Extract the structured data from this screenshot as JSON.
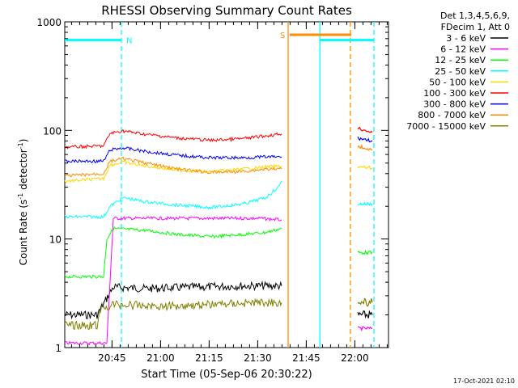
{
  "chart_data": {
    "type": "line",
    "title": "RHESSI Observing Summary Count Rates",
    "xlabel": "Start Time (05-Sep-06 20:30:22)",
    "ylabel": "Count Rate (s",
    "ylabel_sup1": "-1",
    "ylabel_mid": " detector",
    "ylabel_sup2": "-1",
    "ylabel_end": ")",
    "yscale": "log",
    "ylim": [
      1,
      1000
    ],
    "xlim_minutes": [
      0,
      100
    ],
    "x_ticks": [
      {
        "m": 14.6,
        "label": "20:45"
      },
      {
        "m": 29.6,
        "label": "21:00"
      },
      {
        "m": 44.6,
        "label": "21:15"
      },
      {
        "m": 59.6,
        "label": "21:30"
      },
      {
        "m": 74.6,
        "label": "21:45"
      },
      {
        "m": 89.6,
        "label": "22:00"
      }
    ],
    "y_ticks": [
      {
        "v": 1,
        "label": "1"
      },
      {
        "v": 10,
        "label": "10"
      },
      {
        "v": 100,
        "label": "100"
      },
      {
        "v": 1000,
        "label": "1000"
      }
    ],
    "legend_header": [
      "Det 1,3,4,5,6,9,",
      "FDecim 1, Att 0"
    ],
    "legend_position": "right",
    "series": [
      {
        "name": "3 - 6 keV",
        "color": "#000000",
        "points": [
          [
            0,
            2.0
          ],
          [
            10,
            2.0
          ],
          [
            15,
            3.6
          ],
          [
            25,
            3.5
          ],
          [
            40,
            3.6
          ],
          [
            55,
            3.7
          ],
          [
            67,
            3.7
          ]
        ],
        "points2": [
          [
            90.5,
            2.0
          ],
          [
            95,
            2.0
          ]
        ]
      },
      {
        "name": "6 - 12 keV",
        "color": "#ff00ff",
        "points": [
          [
            0,
            1.1
          ],
          [
            13,
            1.1
          ],
          [
            15,
            15.5
          ],
          [
            30,
            15.5
          ],
          [
            45,
            15.5
          ],
          [
            60,
            15.5
          ],
          [
            67,
            15.0
          ]
        ],
        "points2": [
          [
            90.5,
            1.5
          ],
          [
            95,
            1.5
          ]
        ]
      },
      {
        "name": "12 - 25 keV",
        "color": "#00ff00",
        "points": [
          [
            0,
            4.5
          ],
          [
            12,
            4.5
          ],
          [
            13,
            10
          ],
          [
            15,
            12.5
          ],
          [
            25,
            12.0
          ],
          [
            35,
            11.0
          ],
          [
            45,
            10.5
          ],
          [
            55,
            11.0
          ],
          [
            62,
            11.5
          ],
          [
            67,
            12.5
          ]
        ],
        "points2": [
          [
            90.5,
            7.5
          ],
          [
            95,
            7.5
          ]
        ]
      },
      {
        "name": "25 - 50 keV",
        "color": "#00ffff",
        "points": [
          [
            0,
            16
          ],
          [
            12,
            16
          ],
          [
            14,
            20
          ],
          [
            18,
            24
          ],
          [
            25,
            22
          ],
          [
            35,
            20.5
          ],
          [
            45,
            19.5
          ],
          [
            55,
            21
          ],
          [
            62,
            24
          ],
          [
            66,
            30
          ],
          [
            67,
            34
          ]
        ],
        "points2": [
          [
            90.5,
            21
          ],
          [
            95,
            21
          ]
        ]
      },
      {
        "name": "50 - 100 keV",
        "color": "#ffd700",
        "points": [
          [
            0,
            34
          ],
          [
            12,
            36
          ],
          [
            14,
            48
          ],
          [
            18,
            51
          ],
          [
            25,
            47
          ],
          [
            35,
            43
          ],
          [
            45,
            41.5
          ],
          [
            55,
            44
          ],
          [
            62,
            46
          ],
          [
            67,
            47
          ]
        ],
        "points2": [
          [
            90.5,
            46
          ],
          [
            95,
            45
          ]
        ]
      },
      {
        "name": "100 - 300 keV",
        "color": "#ff0000",
        "points": [
          [
            0,
            70
          ],
          [
            12,
            72
          ],
          [
            14,
            94
          ],
          [
            18,
            99
          ],
          [
            25,
            92
          ],
          [
            35,
            85
          ],
          [
            45,
            81
          ],
          [
            55,
            84
          ],
          [
            62,
            89
          ],
          [
            67,
            93
          ]
        ],
        "points2": [
          [
            90.5,
            105
          ],
          [
            95,
            96
          ]
        ]
      },
      {
        "name": "300 - 800 keV",
        "color": "#0000ff",
        "points": [
          [
            0,
            52
          ],
          [
            12,
            52
          ],
          [
            14,
            66
          ],
          [
            18,
            69
          ],
          [
            25,
            64
          ],
          [
            35,
            59
          ],
          [
            45,
            56
          ],
          [
            55,
            56
          ],
          [
            62,
            57
          ],
          [
            67,
            57
          ]
        ],
        "points2": [
          [
            90.5,
            85
          ],
          [
            95,
            80
          ]
        ]
      },
      {
        "name": "800 - 7000 keV",
        "color": "#ff8c00",
        "points": [
          [
            0,
            38
          ],
          [
            12,
            40
          ],
          [
            14,
            52
          ],
          [
            18,
            55
          ],
          [
            25,
            50
          ],
          [
            35,
            44
          ],
          [
            45,
            41
          ],
          [
            55,
            42
          ],
          [
            62,
            44
          ],
          [
            67,
            44
          ]
        ],
        "points2": [
          [
            90.5,
            72
          ],
          [
            95,
            66
          ]
        ]
      },
      {
        "name": "7000 - 15000 keV",
        "color": "#808000",
        "points": [
          [
            0,
            1.6
          ],
          [
            10,
            1.6
          ],
          [
            11,
            2.2
          ],
          [
            15,
            2.5
          ],
          [
            30,
            2.4
          ],
          [
            45,
            2.5
          ],
          [
            60,
            2.6
          ],
          [
            67,
            2.6
          ]
        ],
        "points2": [
          [
            90.5,
            2.6
          ],
          [
            95,
            2.6
          ]
        ]
      }
    ],
    "annotations": [
      {
        "label": "N",
        "color": "#00ffff",
        "bar_from": 0,
        "bar_to": 17.5,
        "bar_value": 680
      },
      {
        "label": "S",
        "color": "#ff8c00",
        "bar_from": 69.5,
        "bar_to": 88.5,
        "bar_value": 760
      }
    ],
    "vlines": [
      {
        "m": 17.5,
        "color": "#00ffff",
        "style": "dashed"
      },
      {
        "m": 69.0,
        "color": "#ff8c00",
        "style": "solid"
      },
      {
        "m": 78.8,
        "color": "#00ffff",
        "style": "solid"
      },
      {
        "m": 88.2,
        "color": "#ff8c00",
        "style": "dashed"
      },
      {
        "m": 95.5,
        "color": "#00ffff",
        "style": "dashed"
      }
    ],
    "hbars_extra": [
      {
        "color": "#00ffff",
        "from": 78.8,
        "to": 95.5,
        "value": 680
      }
    ],
    "timestamp": "17-Oct-2021 02:10"
  }
}
